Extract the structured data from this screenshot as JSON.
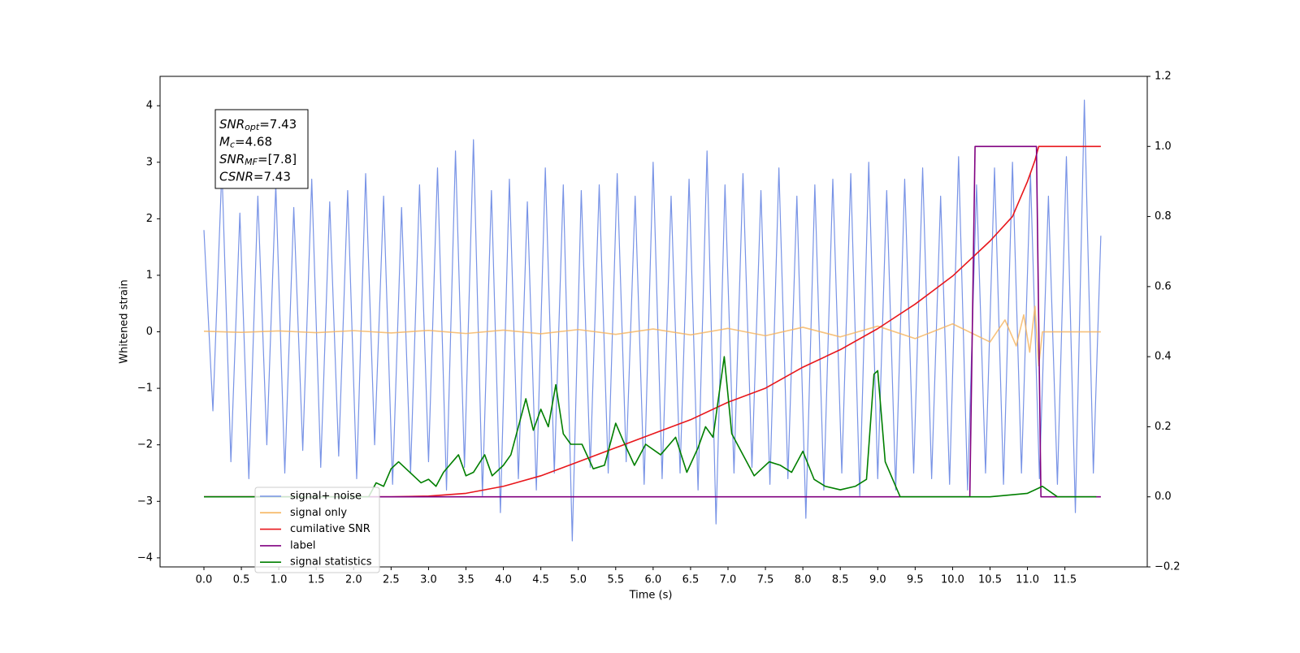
{
  "chart_data": {
    "type": "line",
    "xlabel": "Time (s)",
    "ylabel": "Whitened strain",
    "xlim": [
      -0.586,
      12.6
    ],
    "ylim": [
      -4.16,
      4.52
    ],
    "y2lim": [
      -0.2,
      1.2
    ],
    "xticks": [
      {
        "value": 0,
        "label": "0.0"
      },
      0.5,
      {
        "value": 1,
        "label": "1.0"
      },
      1.5,
      {
        "value": 2,
        "label": "2.0"
      },
      2.5,
      {
        "value": 3,
        "label": "3.0"
      },
      3.5,
      {
        "value": 4,
        "label": "4.0"
      },
      4.5,
      {
        "value": 5,
        "label": "5.0"
      },
      5.5,
      {
        "value": 6,
        "label": "6.0"
      },
      6.5,
      {
        "value": 7,
        "label": "7.0"
      },
      7.5,
      {
        "value": 8,
        "label": "8.0"
      },
      8.5,
      {
        "value": 9,
        "label": "9.0"
      },
      9.5,
      {
        "value": 10,
        "label": "10.0"
      },
      10.5,
      {
        "value": 11,
        "label": "11.0"
      },
      11.5
    ],
    "yticks": [
      {
        "value": -4,
        "label": "−4"
      },
      {
        "value": -3,
        "label": "−3"
      },
      {
        "value": -2,
        "label": "−2"
      },
      {
        "value": -1,
        "label": "−1"
      },
      0,
      1,
      2,
      3,
      4
    ],
    "y2ticks": [
      {
        "value": -0.2,
        "label": "−0.2"
      },
      {
        "value": 0,
        "label": "0.0"
      },
      0.2,
      0.4,
      0.6,
      0.8,
      {
        "value": 1,
        "label": "1.0"
      },
      1.2
    ],
    "legend": "lower left",
    "annotation": [
      {
        "text": "SNR",
        "sub": "opt",
        "value": "=7.43"
      },
      {
        "text": "M",
        "sub": "c",
        "value": "=4.68"
      },
      {
        "text": "SNR",
        "sub": "MF",
        "value": "=[7.8]"
      },
      {
        "text": "CSNR",
        "value": "=7.43"
      }
    ],
    "series": [
      {
        "name": "signal+ noise",
        "color": "#7893e6",
        "x": [
          0.0,
          0.12,
          0.24,
          0.36,
          0.48,
          0.6,
          0.72,
          0.84,
          0.96,
          1.08,
          1.2,
          1.32,
          1.44,
          1.56,
          1.68,
          1.8,
          1.92,
          2.04,
          2.16,
          2.28,
          2.4,
          2.52,
          2.64,
          2.76,
          2.88,
          3.0,
          3.12,
          3.24,
          3.36,
          3.48,
          3.6,
          3.72,
          3.84,
          3.96,
          4.08,
          4.2,
          4.32,
          4.44,
          4.56,
          4.68,
          4.8,
          4.92,
          5.04,
          5.16,
          5.28,
          5.4,
          5.52,
          5.64,
          5.76,
          5.88,
          6.0,
          6.12,
          6.24,
          6.36,
          6.48,
          6.6,
          6.72,
          6.84,
          6.96,
          7.08,
          7.2,
          7.32,
          7.44,
          7.56,
          7.68,
          7.8,
          7.92,
          8.04,
          8.16,
          8.28,
          8.4,
          8.52,
          8.64,
          8.76,
          8.88,
          9.0,
          9.12,
          9.24,
          9.36,
          9.48,
          9.6,
          9.72,
          9.84,
          9.96,
          10.08,
          10.2,
          10.32,
          10.44,
          10.56,
          10.68,
          10.8,
          10.92,
          11.04,
          11.16,
          11.28,
          11.4,
          11.52,
          11.64,
          11.76,
          11.88,
          11.98
        ],
        "values": [
          1.8,
          -1.4,
          2.9,
          -2.3,
          2.1,
          -2.6,
          2.4,
          -2.0,
          2.6,
          -2.5,
          2.2,
          -2.1,
          2.7,
          -2.4,
          2.3,
          -2.2,
          2.5,
          -2.6,
          2.8,
          -2.0,
          2.4,
          -2.7,
          2.2,
          -2.5,
          2.6,
          -2.3,
          2.9,
          -2.8,
          3.2,
          -2.4,
          3.4,
          -2.9,
          2.5,
          -3.2,
          2.7,
          -2.6,
          2.3,
          -2.8,
          2.9,
          -2.5,
          2.6,
          -3.7,
          2.5,
          -2.4,
          2.6,
          -2.5,
          2.8,
          -2.3,
          2.4,
          -2.7,
          3.0,
          -2.6,
          2.4,
          -2.5,
          2.7,
          -2.8,
          3.2,
          -3.4,
          2.6,
          -2.5,
          2.8,
          -2.4,
          2.5,
          -2.7,
          2.9,
          -2.6,
          2.4,
          -3.3,
          2.6,
          -2.8,
          2.7,
          -2.5,
          2.8,
          -2.9,
          3.0,
          -2.6,
          2.5,
          -2.8,
          2.7,
          -2.5,
          2.9,
          -2.6,
          2.4,
          -2.7,
          3.1,
          -2.8,
          2.6,
          -2.5,
          2.9,
          -2.7,
          3.0,
          -2.5,
          2.8,
          -2.6,
          2.4,
          -2.7,
          3.1,
          -3.2,
          4.1,
          -2.5,
          1.7
        ]
      },
      {
        "name": "signal only",
        "color": "#f5b35c",
        "x": [
          0,
          0.5,
          1,
          1.5,
          2,
          2.5,
          3,
          3.5,
          4,
          4.5,
          5,
          5.5,
          6,
          6.5,
          7,
          7.5,
          8,
          8.5,
          9,
          9.5,
          10,
          10.5,
          10.7,
          10.85,
          10.95,
          11.03,
          11.1,
          11.15,
          11.2,
          11.98
        ],
        "values": [
          0.01,
          -0.01,
          0.015,
          -0.015,
          0.02,
          -0.02,
          0.025,
          -0.03,
          0.03,
          -0.035,
          0.04,
          -0.045,
          0.05,
          -0.055,
          0.06,
          -0.07,
          0.08,
          -0.09,
          0.1,
          -0.12,
          0.14,
          -0.18,
          0.21,
          -0.25,
          0.3,
          -0.36,
          0.45,
          -0.6,
          0,
          0
        ]
      },
      {
        "name": "cumilative SNR",
        "color": "#e8161b",
        "axis": "y2",
        "x": [
          0,
          2.5,
          3,
          3.5,
          4,
          4.5,
          5,
          5.5,
          6,
          6.5,
          7,
          7.5,
          8,
          8.5,
          9,
          9.5,
          10,
          10.5,
          10.8,
          11,
          11.1,
          11.15,
          11.98
        ],
        "values": [
          0,
          0,
          0.002,
          0.01,
          0.03,
          0.06,
          0.1,
          0.14,
          0.18,
          0.22,
          0.27,
          0.31,
          0.37,
          0.42,
          0.48,
          0.55,
          0.63,
          0.73,
          0.8,
          0.9,
          0.96,
          1.0,
          1.0
        ]
      },
      {
        "name": "label",
        "color": "#800080",
        "axis": "y2",
        "x": [
          0,
          10.23,
          10.3,
          11.12,
          11.18,
          11.98
        ],
        "values": [
          0,
          0,
          1,
          1,
          0,
          0
        ]
      },
      {
        "name": "signal statistics",
        "color": "#007f00",
        "axis": "y2",
        "x": [
          0,
          2.2,
          2.3,
          2.4,
          2.5,
          2.6,
          2.7,
          2.8,
          2.9,
          3.0,
          3.1,
          3.2,
          3.4,
          3.5,
          3.6,
          3.75,
          3.85,
          4.0,
          4.1,
          4.2,
          4.3,
          4.4,
          4.5,
          4.6,
          4.7,
          4.8,
          4.9,
          5.05,
          5.2,
          5.35,
          5.5,
          5.6,
          5.75,
          5.9,
          6.1,
          6.3,
          6.45,
          6.6,
          6.7,
          6.8,
          6.95,
          7.05,
          7.2,
          7.35,
          7.55,
          7.7,
          7.85,
          8.0,
          8.15,
          8.3,
          8.5,
          8.7,
          8.85,
          8.95,
          9.0,
          9.1,
          9.2,
          9.3,
          9.6,
          10.2,
          10.5,
          11.0,
          11.2,
          11.4,
          11.92
        ],
        "values": [
          0,
          0,
          0.04,
          0.03,
          0.08,
          0.1,
          0.08,
          0.06,
          0.04,
          0.05,
          0.03,
          0.07,
          0.12,
          0.06,
          0.07,
          0.12,
          0.06,
          0.09,
          0.12,
          0.2,
          0.28,
          0.19,
          0.25,
          0.2,
          0.32,
          0.18,
          0.15,
          0.15,
          0.08,
          0.09,
          0.21,
          0.16,
          0.09,
          0.15,
          0.12,
          0.17,
          0.07,
          0.14,
          0.2,
          0.17,
          0.4,
          0.18,
          0.12,
          0.06,
          0.1,
          0.09,
          0.07,
          0.13,
          0.05,
          0.03,
          0.02,
          0.03,
          0.05,
          0.35,
          0.36,
          0.1,
          0.05,
          0,
          0,
          0,
          0,
          0.01,
          0.03,
          0,
          0
        ]
      }
    ]
  }
}
